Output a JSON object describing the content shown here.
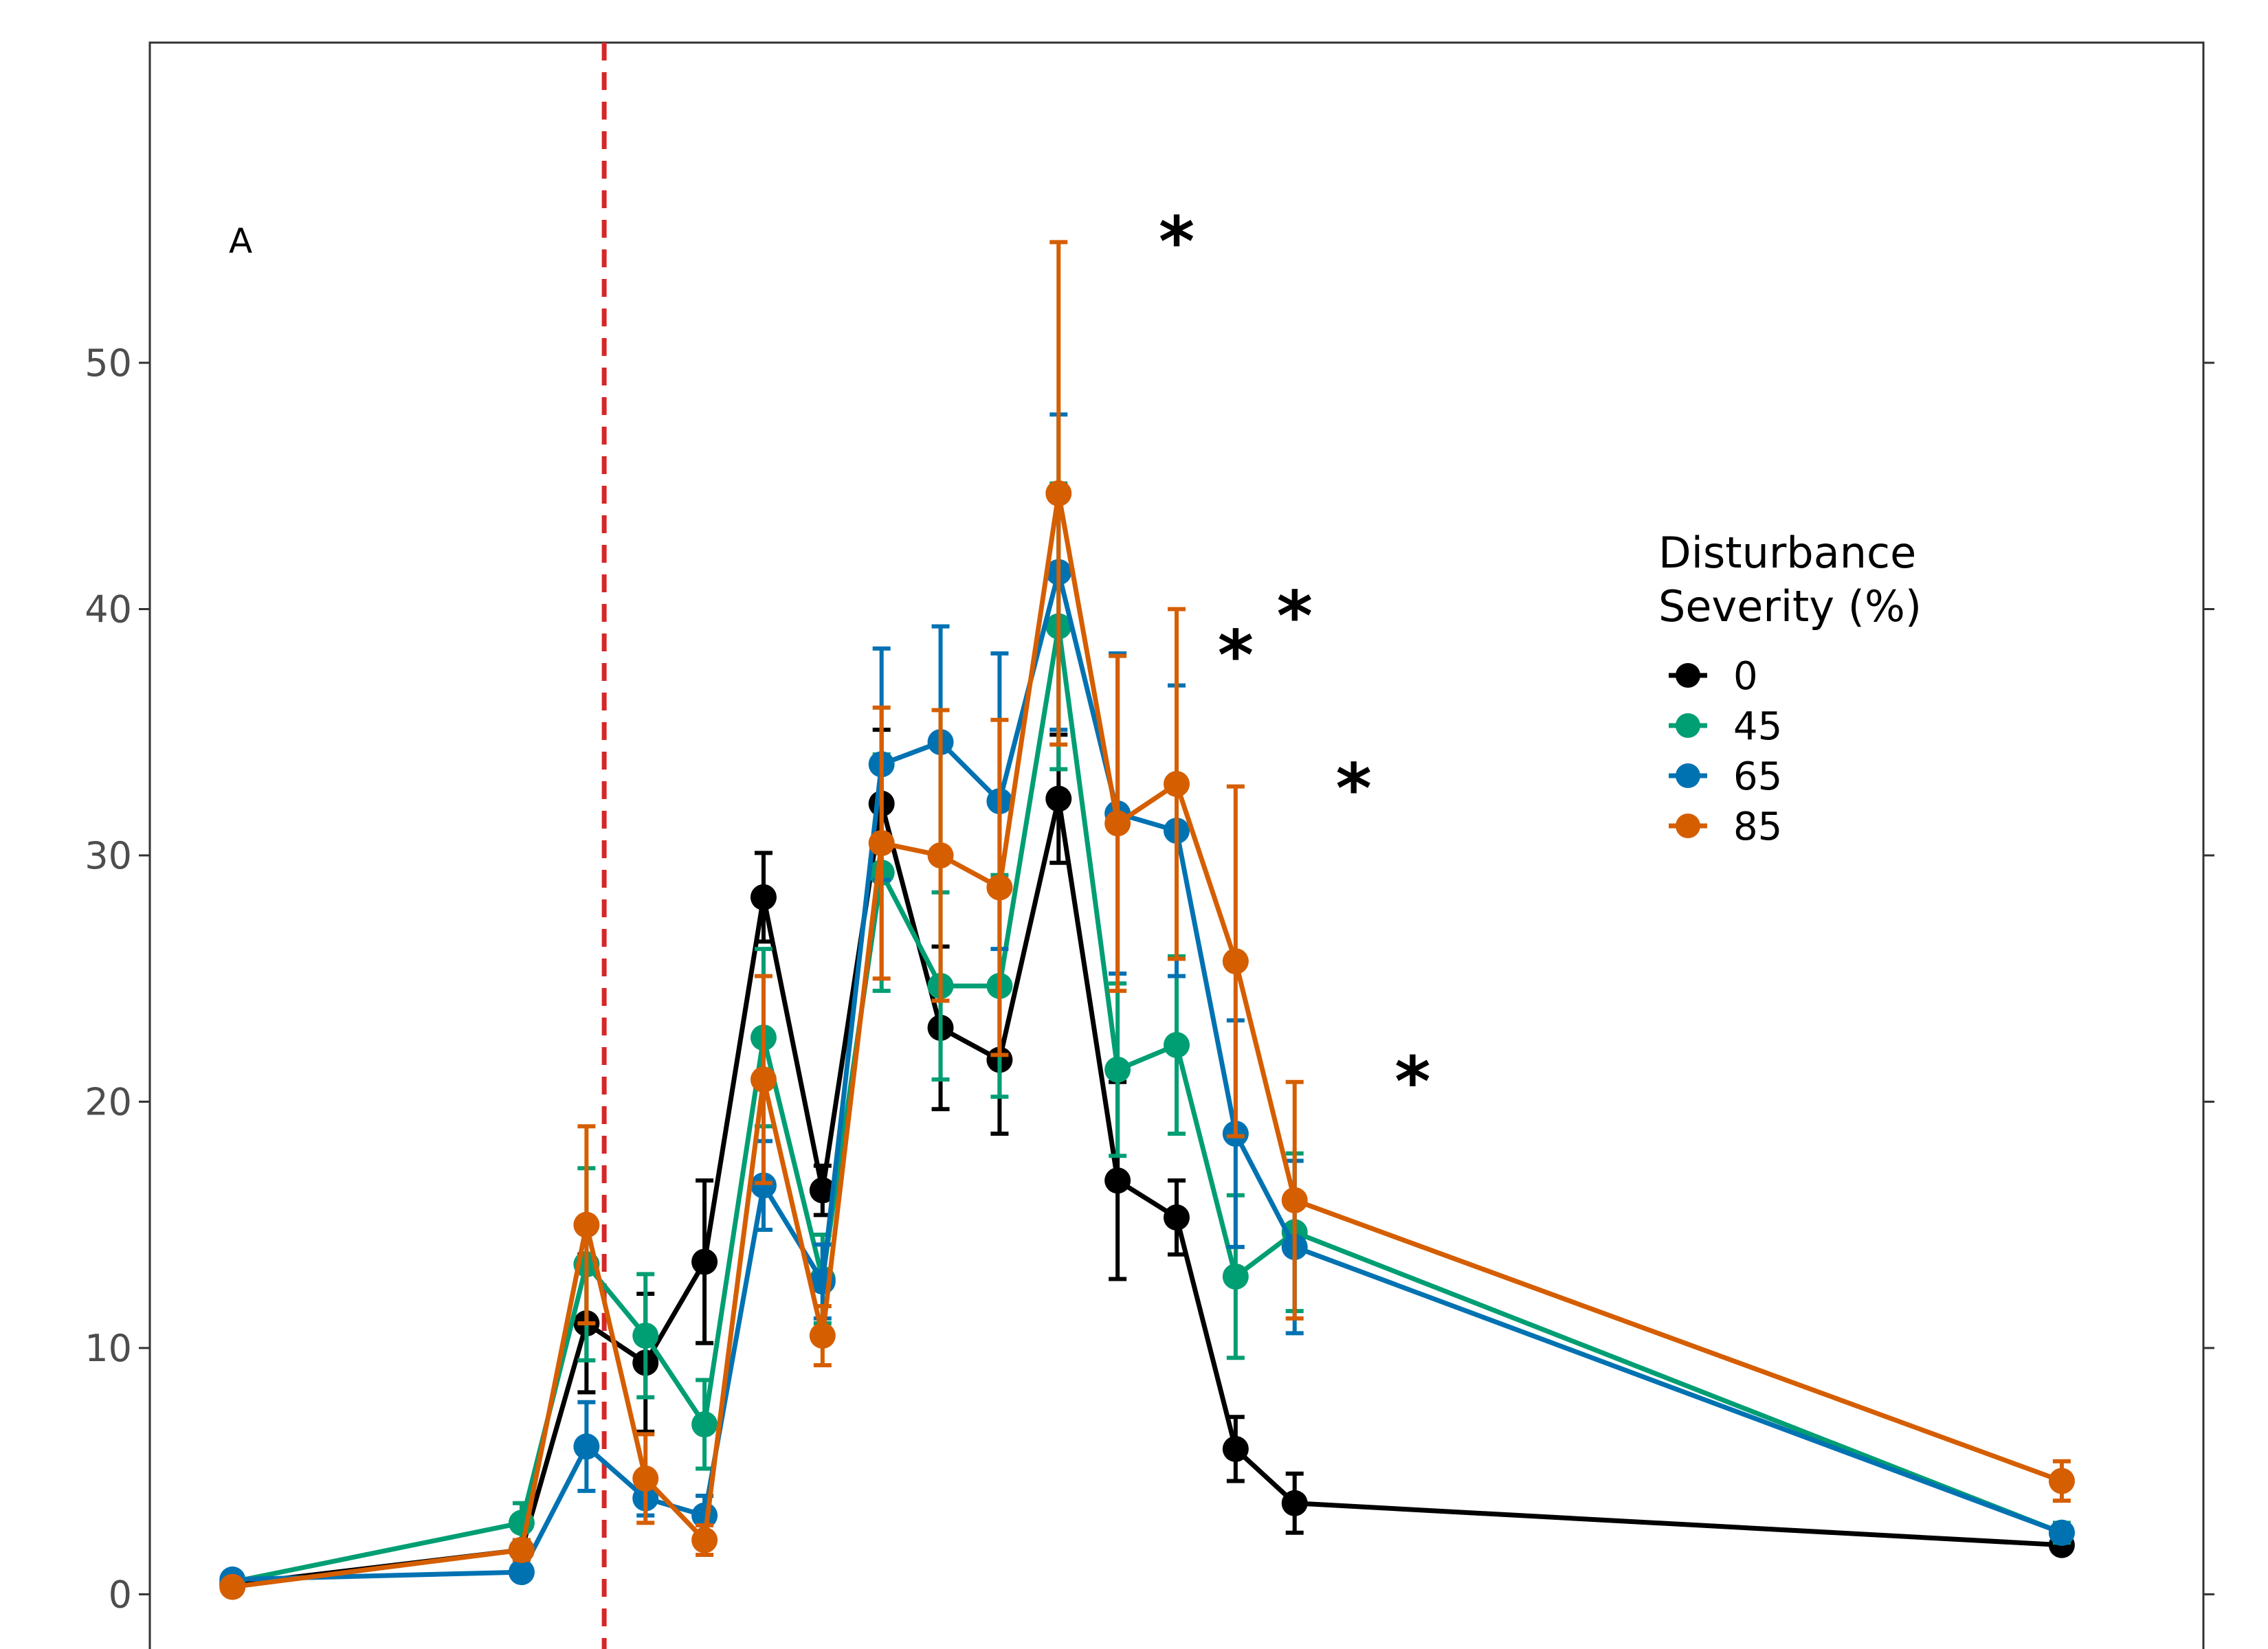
{
  "chart_data": {
    "type": "line",
    "panel_label": "A",
    "title": "",
    "xlabel": "",
    "ylabel": "",
    "ylim": [
      -2.5,
      63
    ],
    "xlim": [
      0.3,
      17.7
    ],
    "yticks": [
      0,
      10,
      20,
      30,
      40,
      50
    ],
    "x": [
      1,
      3.45,
      4,
      4.5,
      5,
      5.5,
      6,
      6.5,
      7,
      7.5,
      8,
      8.5,
      9,
      9.5,
      10,
      16.5
    ],
    "x_minor_ticks": [
      1,
      2,
      3,
      4,
      5,
      6,
      7,
      8,
      9,
      10,
      11,
      12,
      13,
      14,
      15,
      16,
      17
    ],
    "disturbance_line_x": 4.15,
    "disturbance_line_color": "#d62728",
    "grid": false,
    "legend": {
      "title_line1": "Disturbance",
      "title_line2": "Severity (%)",
      "position": "right"
    },
    "series": [
      {
        "name": "0",
        "color": "#000000",
        "values": [
          0.4,
          1.8,
          11.0,
          9.4,
          13.5,
          28.3,
          16.4,
          32.1,
          23.0,
          21.7,
          32.3,
          16.8,
          15.3,
          5.9,
          3.7,
          2.0
        ],
        "errors": [
          0.2,
          0.4,
          2.8,
          2.8,
          3.3,
          1.8,
          1.0,
          3.0,
          3.3,
          3.0,
          2.6,
          4.0,
          1.5,
          1.3,
          1.2,
          0.3
        ]
      },
      {
        "name": "45",
        "color": "#009e73",
        "values": [
          0.5,
          2.9,
          13.4,
          10.5,
          6.9,
          22.6,
          12.8,
          29.3,
          24.7,
          24.7,
          39.3,
          21.3,
          22.3,
          12.9,
          14.7,
          2.5
        ],
        "errors": [
          0.2,
          0.8,
          3.9,
          2.5,
          1.8,
          3.6,
          1.8,
          4.8,
          3.8,
          4.5,
          5.8,
          3.5,
          3.6,
          3.3,
          3.2,
          0.4
        ]
      },
      {
        "name": "65",
        "color": "#0072b2",
        "values": [
          0.6,
          0.9,
          6.0,
          3.9,
          3.2,
          16.6,
          12.7,
          33.7,
          34.6,
          32.2,
          41.5,
          31.7,
          31.0,
          18.7,
          14.1,
          2.5
        ],
        "errors": [
          0.2,
          0.3,
          1.8,
          0.7,
          0.8,
          1.8,
          1.5,
          4.7,
          4.7,
          6.0,
          6.4,
          6.5,
          5.9,
          4.6,
          3.5,
          0.3
        ]
      },
      {
        "name": "85",
        "color": "#d55e00",
        "values": [
          0.3,
          1.8,
          15.0,
          4.7,
          2.2,
          20.9,
          10.5,
          30.5,
          30.0,
          28.7,
          44.7,
          31.3,
          32.9,
          25.7,
          16.0,
          4.6
        ],
        "errors": [
          0.2,
          0.4,
          4.0,
          1.8,
          0.6,
          4.2,
          1.2,
          5.5,
          5.9,
          6.8,
          10.2,
          6.8,
          7.1,
          7.1,
          4.8,
          0.8
        ]
      }
    ],
    "significance": {
      "symbol": "*",
      "marks": [
        {
          "x": 9,
          "y": 55.4
        },
        {
          "x": 9.5,
          "y": 38.6
        },
        {
          "x": 10,
          "y": 40.2
        },
        {
          "x": 10.5,
          "y": 33.2
        },
        {
          "x": 11,
          "y": 21.3
        }
      ]
    }
  }
}
